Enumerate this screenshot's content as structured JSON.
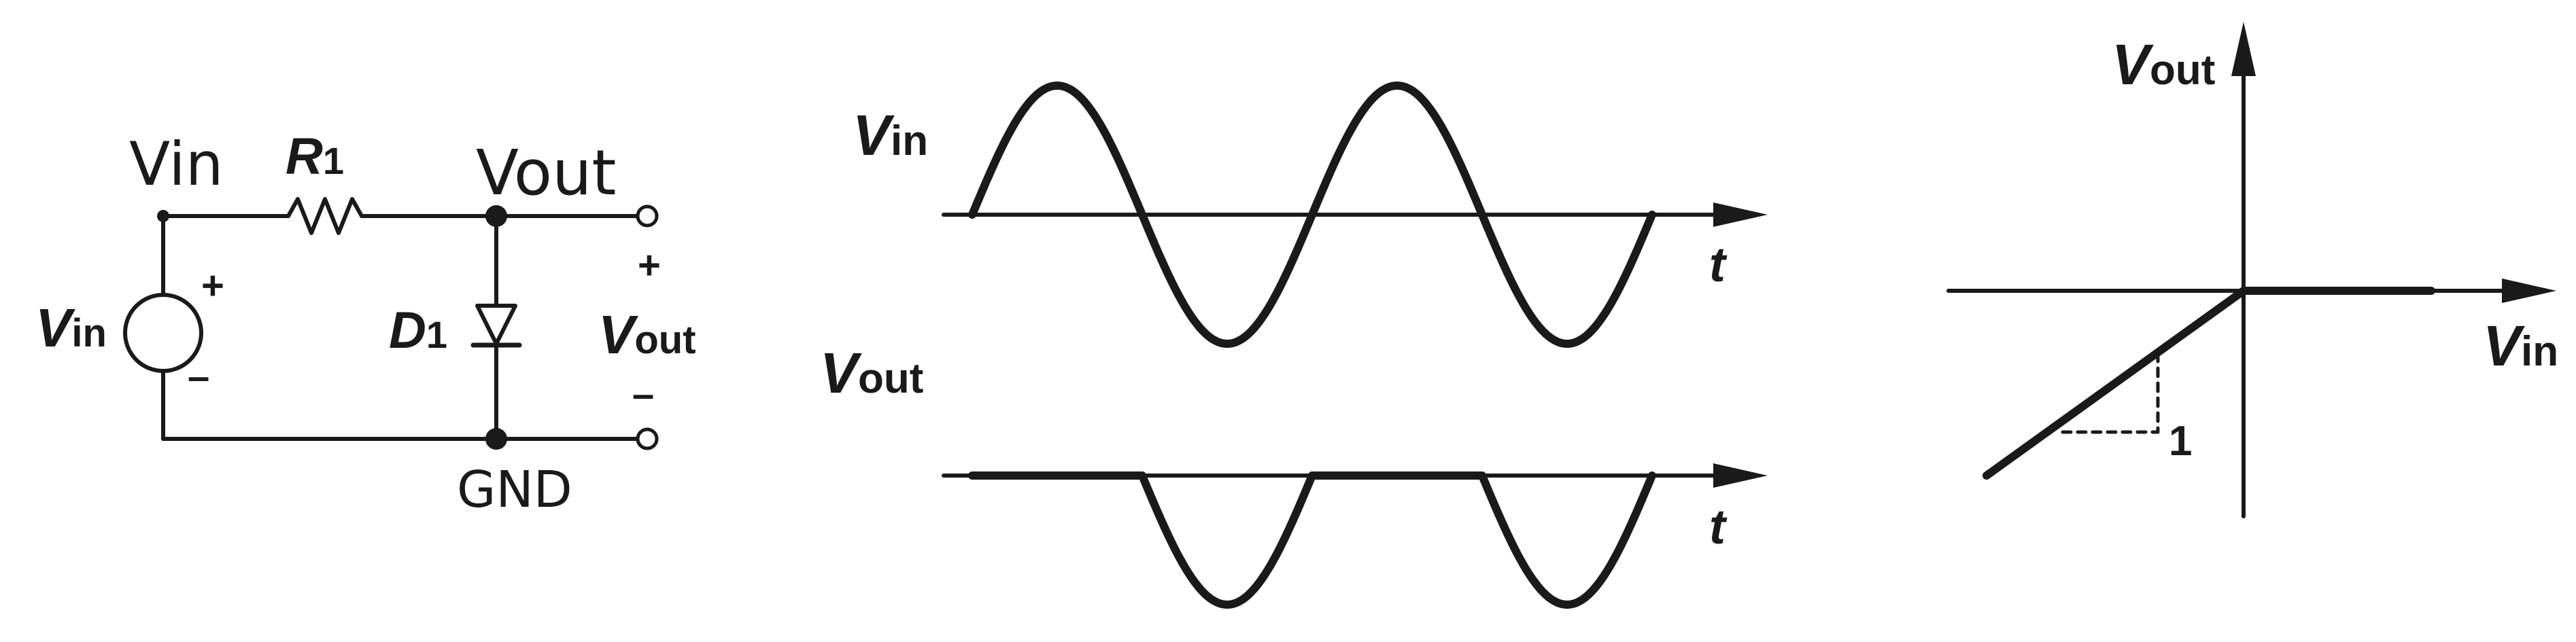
{
  "circuit": {
    "vin_node_label": "Vin",
    "r1_label": "R",
    "r1_sub": "1",
    "vout_node_label": "Vout",
    "source_label": "V",
    "source_sub": "in",
    "plus": "+",
    "minus": "–",
    "d1_label": "D",
    "d1_sub": "1",
    "out_plus": "+",
    "out_label": "V",
    "out_sub": "out",
    "out_minus": "–",
    "gnd_label": "GND"
  },
  "waveforms": {
    "vin_label": "V",
    "vin_sub": "in",
    "vout_label": "V",
    "vout_sub": "out",
    "t_top": "t",
    "t_bottom": "t"
  },
  "transfer": {
    "y_label": "V",
    "y_sub": "out",
    "x_label": "V",
    "x_sub": "in",
    "slope_label": "1"
  }
}
